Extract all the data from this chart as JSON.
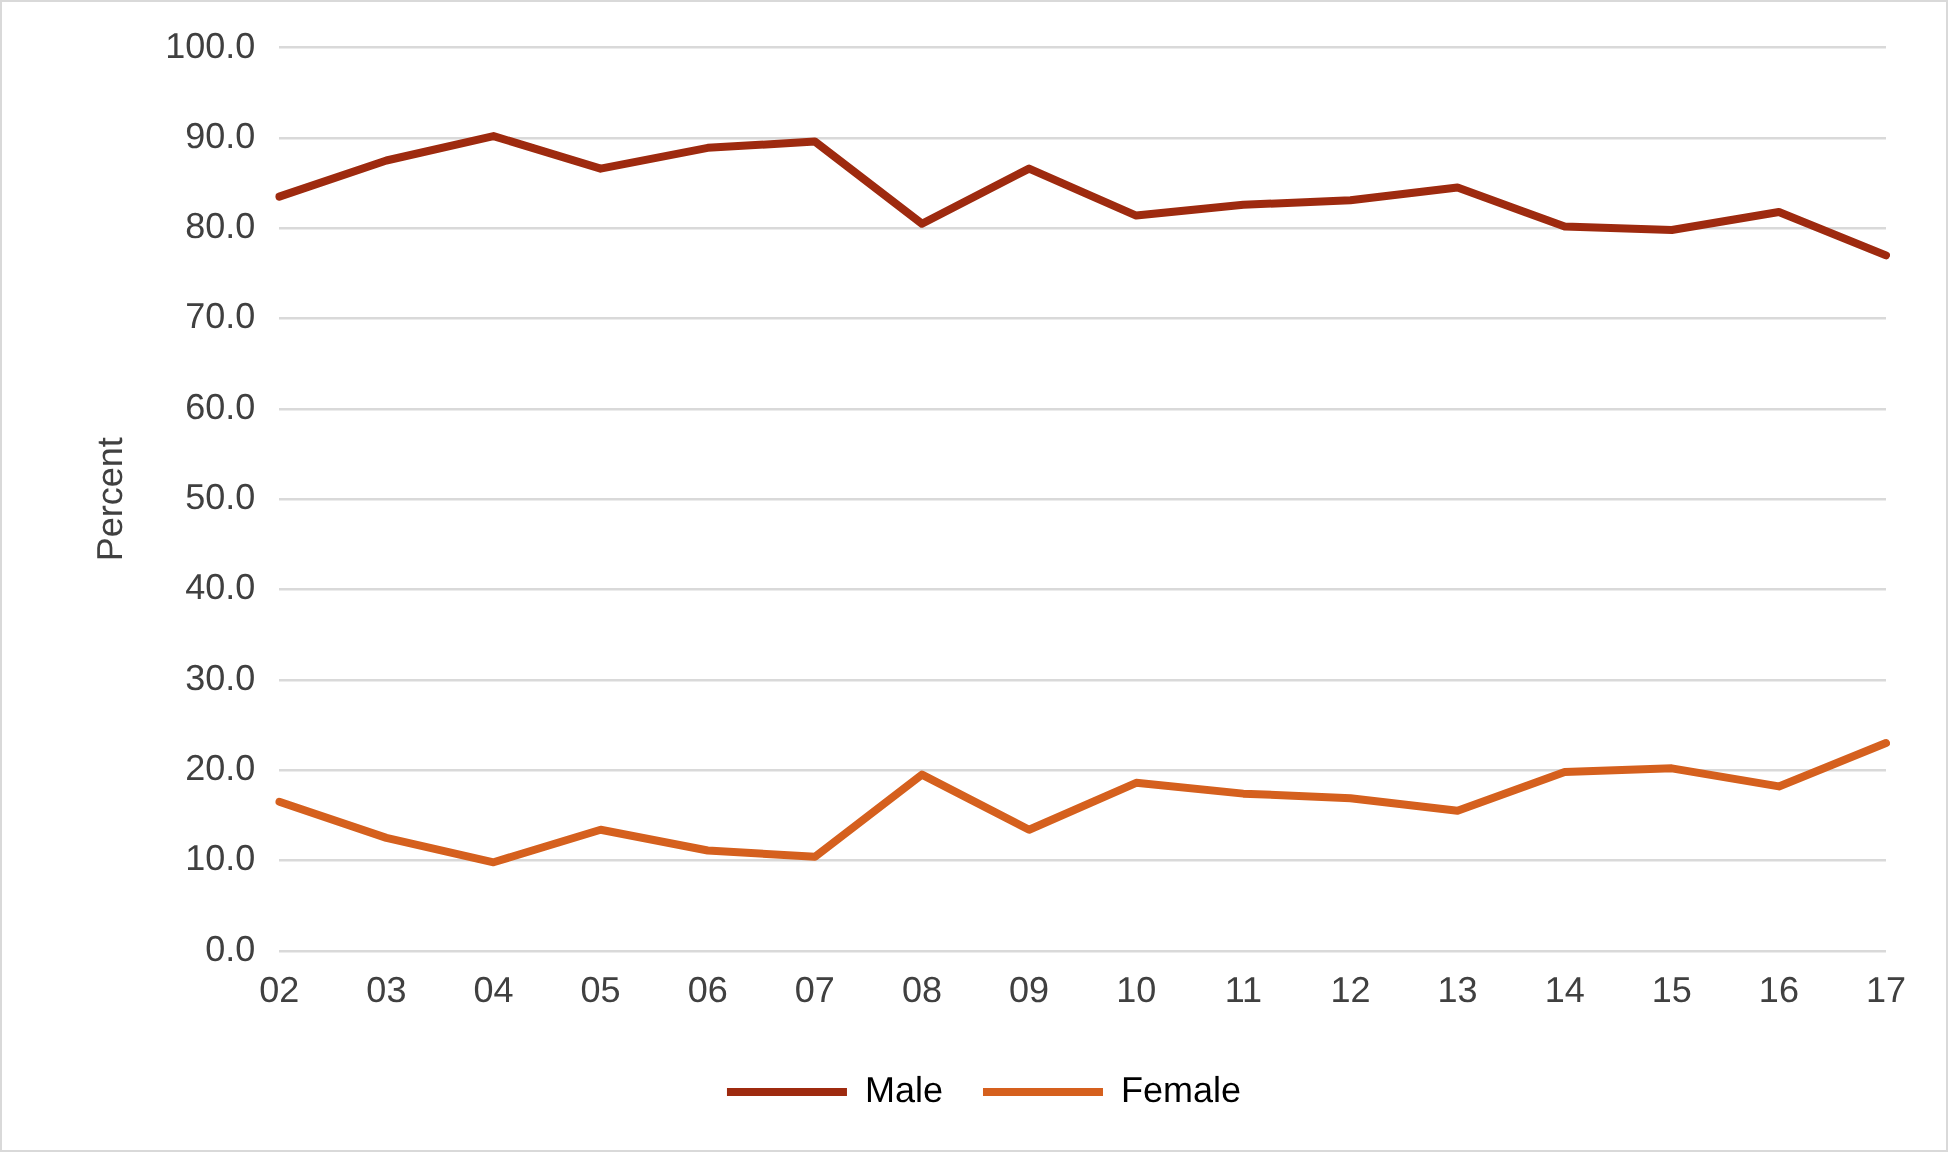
{
  "chart_data": {
    "type": "line",
    "ylabel": "Percent",
    "categories": [
      "02",
      "03",
      "04",
      "05",
      "06",
      "07",
      "08",
      "09",
      "10",
      "11",
      "12",
      "13",
      "14",
      "15",
      "16",
      "17"
    ],
    "series": [
      {
        "name": "Male",
        "color": "#9e2a0f",
        "values": [
          83.5,
          87.5,
          90.2,
          86.6,
          88.9,
          89.6,
          80.5,
          86.6,
          81.4,
          82.6,
          83.1,
          84.5,
          80.2,
          79.8,
          81.8,
          77.0
        ]
      },
      {
        "name": "Female",
        "color": "#d5601e",
        "values": [
          16.5,
          12.5,
          9.8,
          13.4,
          11.1,
          10.4,
          19.5,
          13.4,
          18.6,
          17.4,
          16.9,
          15.5,
          19.8,
          20.2,
          18.2,
          23.0
        ]
      }
    ],
    "ylim": [
      0,
      100
    ],
    "yticks": [
      {
        "value": 0,
        "label": "0.0"
      },
      {
        "value": 10,
        "label": "10.0"
      },
      {
        "value": 20,
        "label": "20.0"
      },
      {
        "value": 30,
        "label": "30.0"
      },
      {
        "value": 40,
        "label": "40.0"
      },
      {
        "value": 50,
        "label": "50.0"
      },
      {
        "value": 60,
        "label": "60.0"
      },
      {
        "value": 70,
        "label": "70.0"
      },
      {
        "value": 80,
        "label": "80.0"
      },
      {
        "value": 90,
        "label": "90.0"
      },
      {
        "value": 100,
        "label": "100.0"
      }
    ],
    "grid": "y",
    "legend": "bottom",
    "marker": "none",
    "line_style": "solid"
  }
}
